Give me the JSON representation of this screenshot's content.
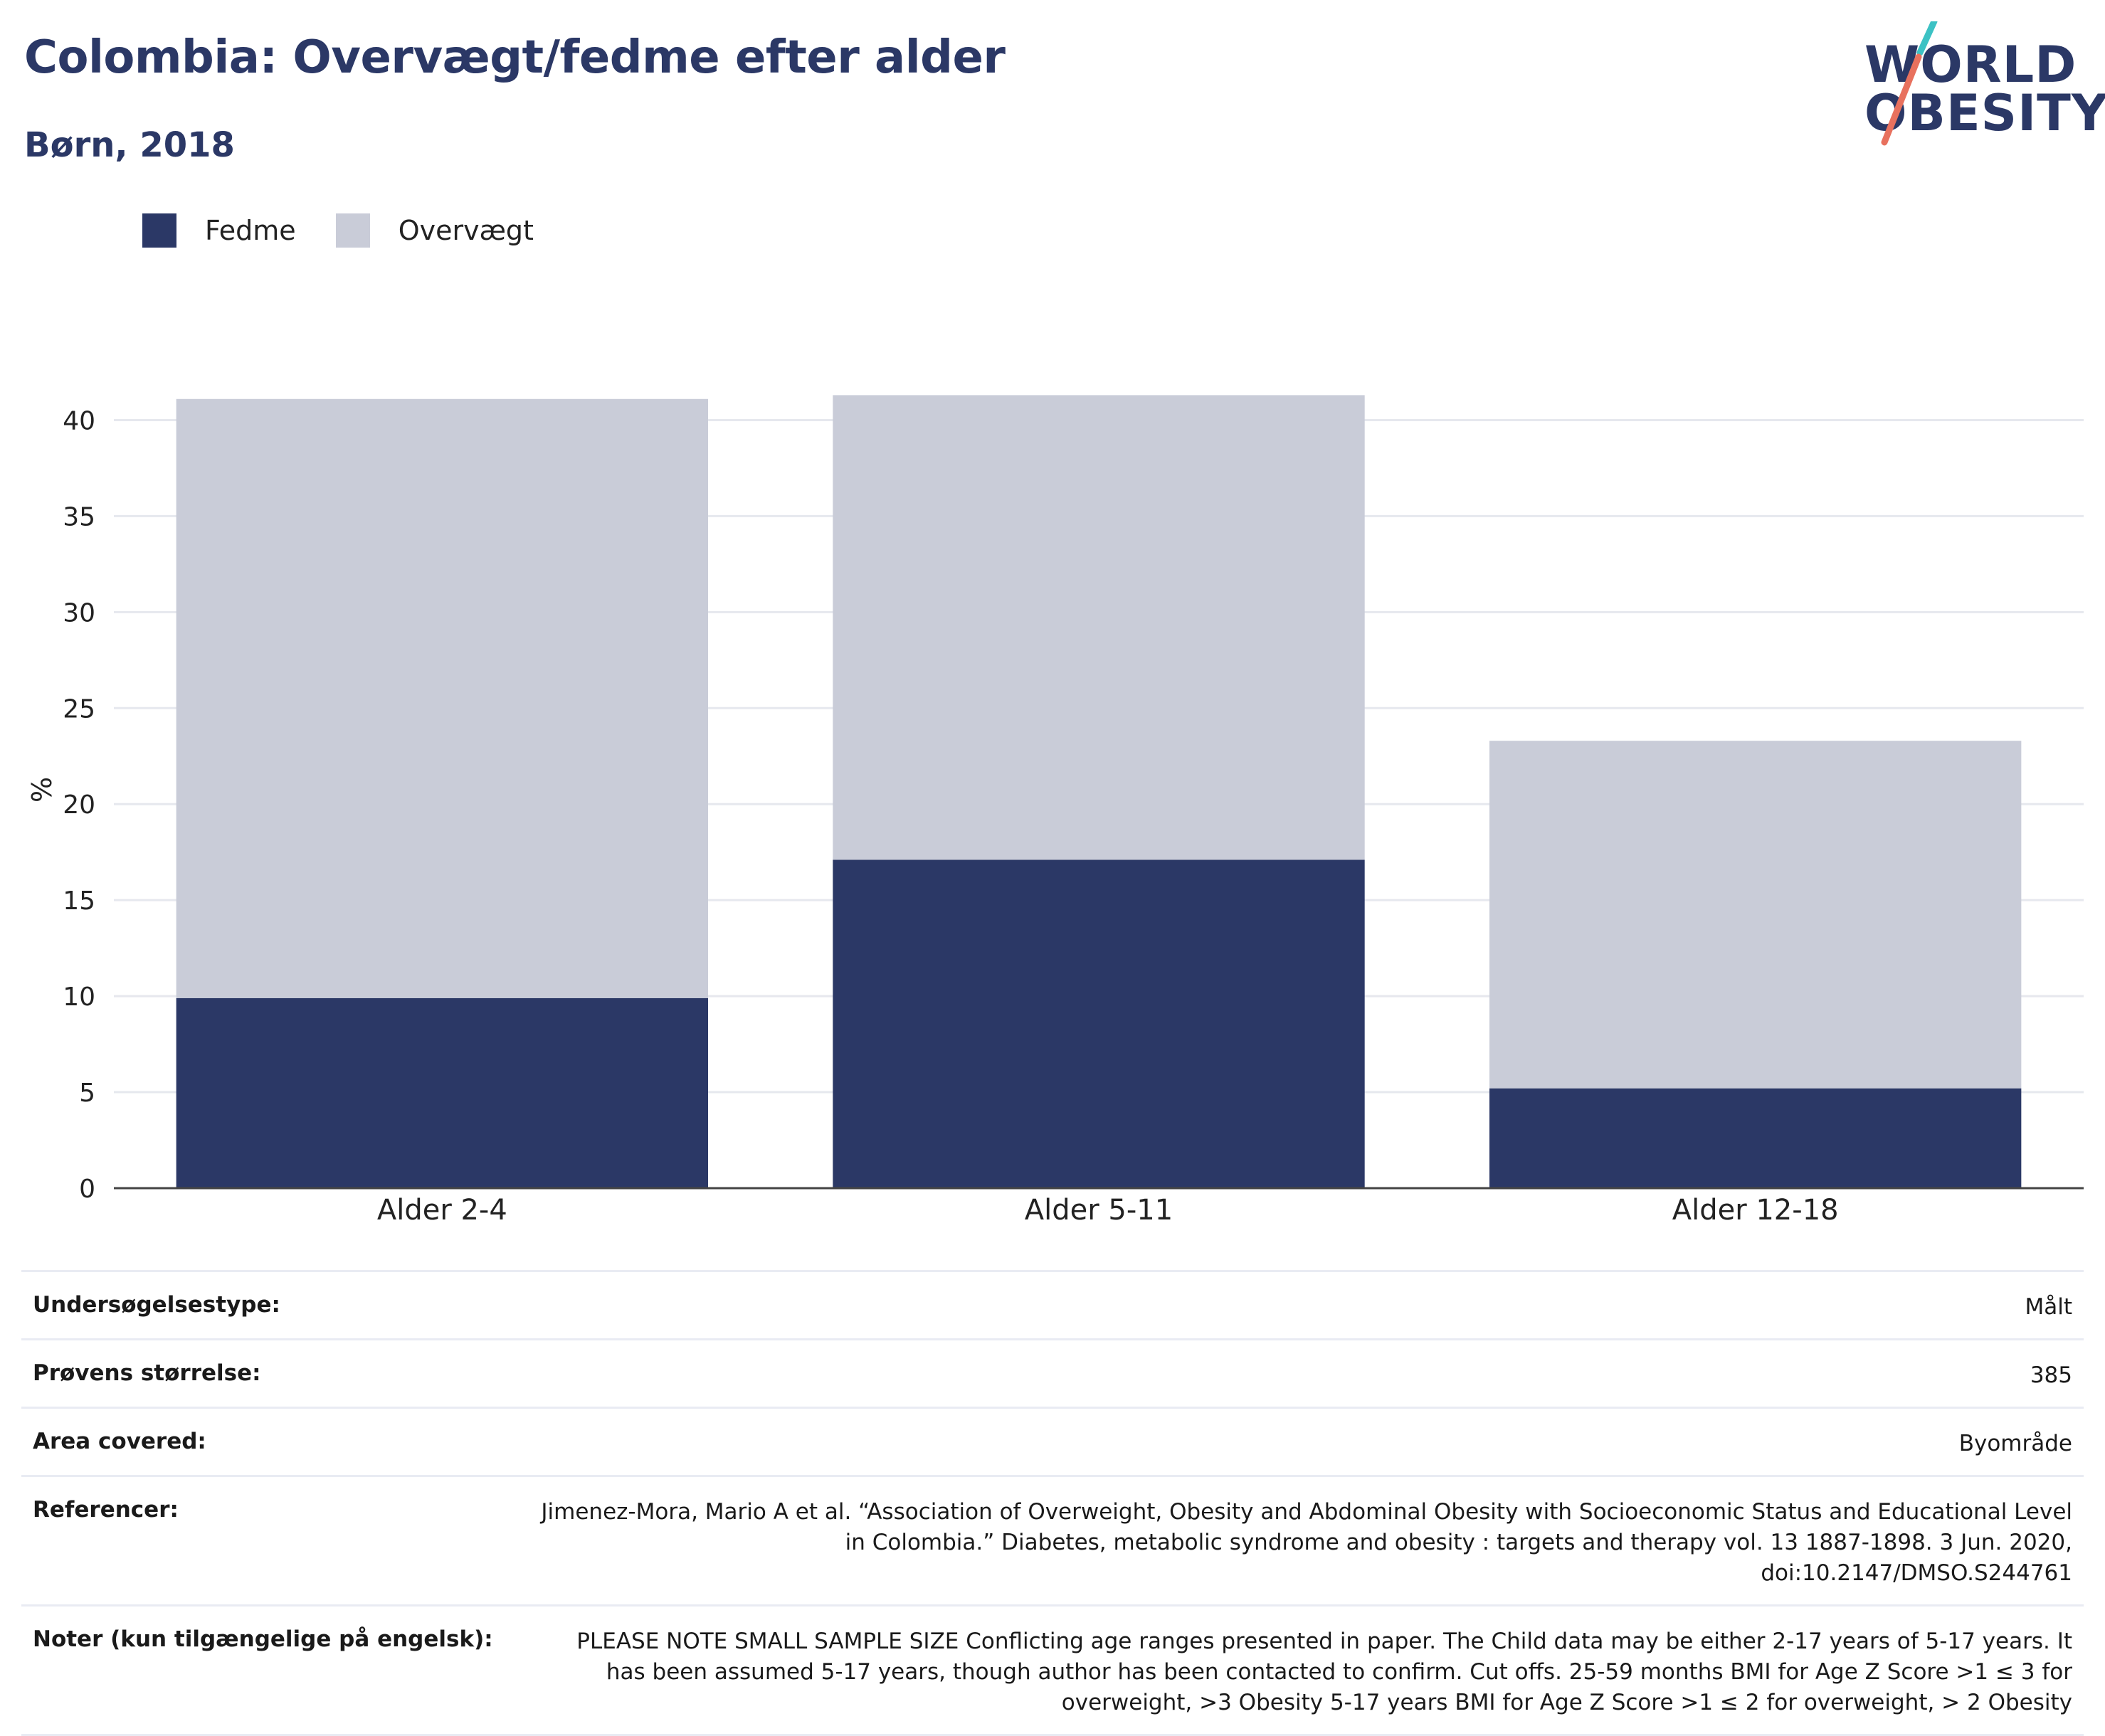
{
  "title": "Colombia: Overvægt/fedme efter alder",
  "subtitle": "Børn, 2018",
  "logo": {
    "line1": "WORLD",
    "line2": "OBESITY",
    "slash_colors": [
      "#3cc2c4",
      "#e8715e"
    ]
  },
  "colors": {
    "fedme": "#2b3866",
    "overvaegt": "#c9ccd8",
    "text_dark": "#2b3866"
  },
  "legend": [
    {
      "label": "Fedme",
      "color": "#2b3866"
    },
    {
      "label": "Overvægt",
      "color": "#c9ccd8"
    }
  ],
  "chart_data": {
    "type": "bar",
    "stacked": true,
    "categories": [
      "Alder 2-4",
      "Alder 5-11",
      "Alder 12-18"
    ],
    "series": [
      {
        "name": "Fedme",
        "values": [
          9.9,
          17.1,
          5.2
        ]
      },
      {
        "name": "Overvægt",
        "values": [
          31.2,
          24.2,
          18.1
        ]
      }
    ],
    "ylabel": "%",
    "xlabel": "",
    "ylim": [
      0,
      41.5
    ],
    "yticks": [
      0,
      5,
      10,
      15,
      20,
      25,
      30,
      35,
      40
    ],
    "grid": true,
    "legend_position": "top-left"
  },
  "info": [
    {
      "label": "Undersøgelsestype:",
      "value": "Målt"
    },
    {
      "label": "Prøvens størrelse:",
      "value": "385"
    },
    {
      "label": "Area covered:",
      "value": "Byområde"
    },
    {
      "label": "Referencer:",
      "value": "Jimenez-Mora, Mario A et al. “Association of Overweight, Obesity and Abdominal Obesity with Socioeconomic Status and Educational Level in Colombia.” Diabetes, metabolic syndrome and obesity : targets and therapy vol. 13 1887-1898. 3 Jun. 2020, doi:10.2147/DMSO.S244761"
    },
    {
      "label": "Noter (kun tilgængelige på engelsk):",
      "value": "PLEASE NOTE SMALL SAMPLE SIZE Conflicting age ranges presented in paper. The Child data may be either 2-17 years of 5-17 years. It has been assumed 5-17 years, though author has been contacted to confirm. Cut offs. 25-59 months BMI for Age Z Score >1 ≤ 3 for overweight, >3 Obesity 5-17 years BMI for Age Z Score >1 ≤ 2 for overweight, > 2 Obesity"
    }
  ]
}
